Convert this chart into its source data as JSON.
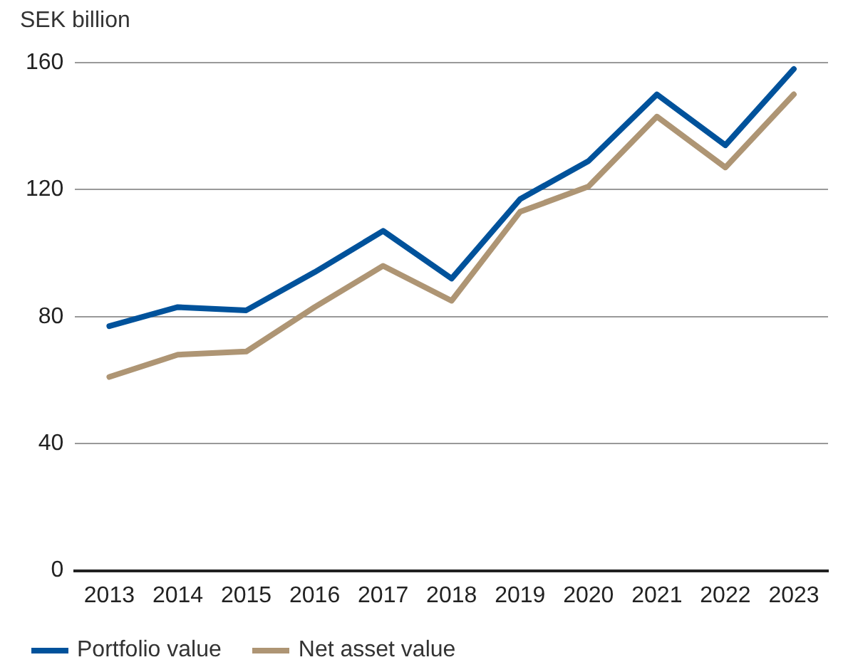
{
  "chart_data": {
    "type": "line",
    "ylabel": "SEK billion",
    "categories": [
      "2013",
      "2014",
      "2015",
      "2016",
      "2017",
      "2018",
      "2019",
      "2020",
      "2021",
      "2022",
      "2023"
    ],
    "series": [
      {
        "name": "Portfolio value",
        "color": "#00529b",
        "values": [
          77,
          83,
          82,
          94,
          107,
          92,
          117,
          129,
          150,
          134,
          158
        ]
      },
      {
        "name": "Net asset value",
        "color": "#ae9574",
        "values": [
          61,
          68,
          69,
          83,
          96,
          85,
          113,
          121,
          143,
          127,
          150
        ]
      }
    ],
    "ylim": [
      0,
      160
    ],
    "yticks": [
      0,
      40,
      80,
      120,
      160
    ],
    "grid": "y",
    "legend": "bottom left",
    "marker": "none",
    "line_style": "solid"
  }
}
